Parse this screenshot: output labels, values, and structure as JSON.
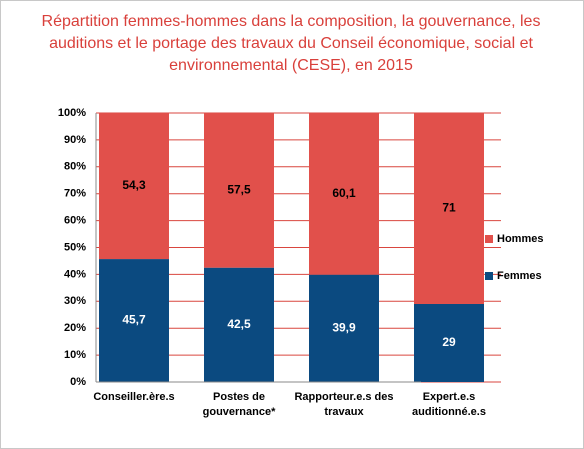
{
  "chart_data": {
    "type": "bar",
    "stacked": true,
    "title": "Répartition femmes-hommes dans la composition, la gouvernance, les auditions et le portage des travaux du Conseil économique, social et environnemental (CESE), en 2015",
    "categories": [
      "Conseiller.ère.s",
      "Postes de gouvernance*",
      "Rapporteur.e.s des travaux",
      "Expert.e.s auditionné.e.s"
    ],
    "series": [
      {
        "name": "Femmes",
        "color": "#0b4a80",
        "label_color": "#ffffff",
        "values": [
          45.7,
          42.5,
          39.9,
          29
        ],
        "value_labels": [
          "45,7",
          "42,5",
          "39,9",
          "29"
        ]
      },
      {
        "name": "Hommes",
        "color": "#e1504b",
        "label_color": "#000000",
        "values": [
          54.3,
          57.5,
          60.1,
          71
        ],
        "value_labels": [
          "54,3",
          "57,5",
          "60,1",
          "71"
        ]
      }
    ],
    "ylim": [
      0,
      100
    ],
    "yticks": [
      {
        "value": 0,
        "label": "0%"
      },
      {
        "value": 10,
        "label": "10%"
      },
      {
        "value": 20,
        "label": "20%"
      },
      {
        "value": 30,
        "label": "30%"
      },
      {
        "value": 40,
        "label": "40%"
      },
      {
        "value": 50,
        "label": "50%"
      },
      {
        "value": 60,
        "label": "60%"
      },
      {
        "value": 70,
        "label": "70%"
      },
      {
        "value": 80,
        "label": "80%"
      },
      {
        "value": 90,
        "label": "90%"
      },
      {
        "value": 100,
        "label": "100%"
      }
    ],
    "grid": true,
    "grid_color": "#d9463f",
    "legend": "right"
  }
}
